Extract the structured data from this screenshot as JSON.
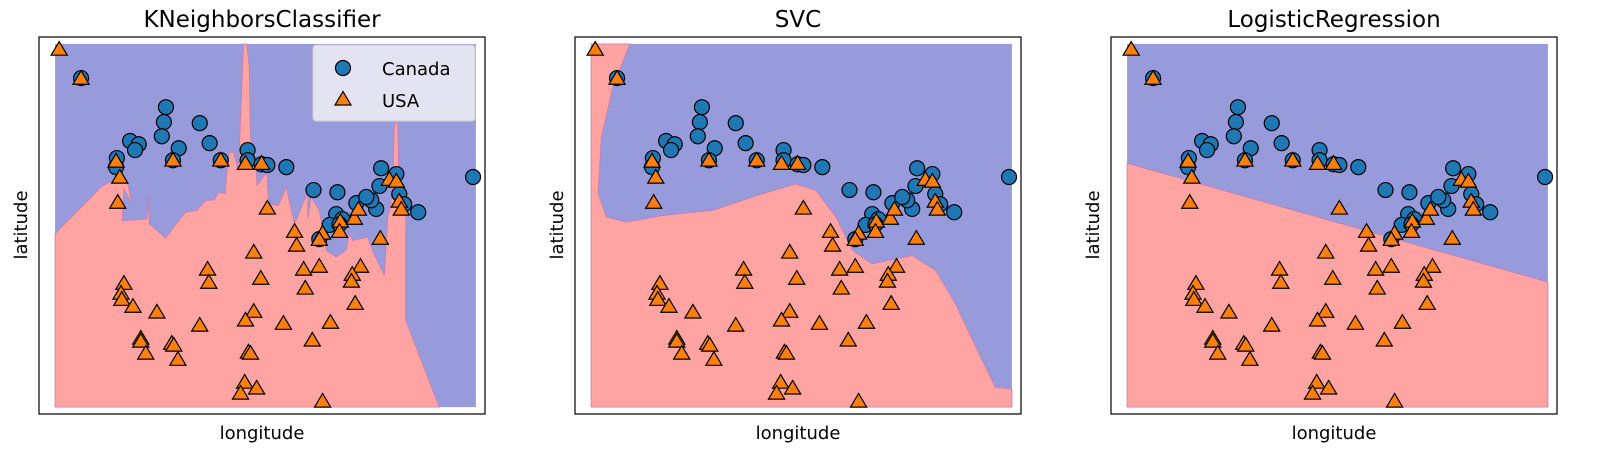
{
  "colors": {
    "region_canada": "#989bdb",
    "region_usa": "#ffa3a3",
    "boundary": "#c87bae",
    "canada_marker": "#1f77b4",
    "usa_marker": "#ff7f0e",
    "marker_edge": "#000000",
    "legend_bg": "#ebebf4"
  },
  "chart_data": [
    {
      "type": "scatter",
      "title": "KNeighborsClassifier",
      "xlabel": "longitude",
      "ylabel": "latitude",
      "legend": "top-right",
      "decision_region": "knn"
    },
    {
      "type": "scatter",
      "title": "SVC",
      "xlabel": "longitude",
      "ylabel": "latitude",
      "decision_region": "svc"
    },
    {
      "type": "scatter",
      "title": "LogisticRegression",
      "xlabel": "longitude",
      "ylabel": "latitude",
      "decision_region": "logreg"
    }
  ],
  "shared": {
    "xlim": [
      -3.9,
      104.3
    ],
    "ylim": [
      -1.9,
      101.8
    ],
    "region_extent": {
      "x": [
        0,
        102.1
      ],
      "y": [
        0,
        99.9
      ]
    },
    "ticks": "none",
    "grid": false,
    "legend": [
      {
        "label": "Canada",
        "marker": "circle"
      },
      {
        "label": "USA",
        "marker": "triangle"
      }
    ],
    "series": [
      {
        "name": "Canada",
        "marker": "circle",
        "points": [
          [
            6.3,
            90.5
          ],
          [
            26.9,
            82.5
          ],
          [
            26.4,
            78.4
          ],
          [
            25.9,
            74.5
          ],
          [
            18.2,
            73.2
          ],
          [
            20.3,
            72.3
          ],
          [
            19.4,
            70.7
          ],
          [
            30.0,
            71.2
          ],
          [
            35.1,
            78.1
          ],
          [
            37.5,
            72.6
          ],
          [
            15.0,
            68.5
          ],
          [
            14.8,
            66.0
          ],
          [
            28.6,
            67.9
          ],
          [
            40.2,
            67.9
          ],
          [
            46.7,
            70.7
          ],
          [
            46.7,
            67.9
          ],
          [
            50.1,
            66.8
          ],
          [
            51.5,
            66.6
          ],
          [
            56.1,
            66.0
          ],
          [
            62.7,
            59.7
          ],
          [
            68.5,
            59.1
          ],
          [
            79.1,
            65.7
          ],
          [
            78.7,
            60.8
          ],
          [
            101.4,
            63.3
          ],
          [
            88.1,
            53.6
          ],
          [
            77.9,
            54.5
          ],
          [
            76.7,
            56.9
          ],
          [
            73.1,
            56.1
          ],
          [
            68.2,
            53.1
          ],
          [
            69.7,
            51.7
          ],
          [
            66.6,
            50.1
          ],
          [
            64.1,
            46.2
          ],
          [
            83.5,
            58.6
          ],
          [
            84.7,
            55.8
          ],
          [
            82.8,
            64.1
          ],
          [
            69.0,
            50.3
          ],
          [
            75.5,
            57.8
          ]
        ]
      },
      {
        "name": "USA",
        "marker": "triangle",
        "points": [
          [
            1.0,
            98.2
          ],
          [
            6.3,
            90.2
          ],
          [
            14.8,
            67.4
          ],
          [
            15.7,
            63.0
          ],
          [
            15.2,
            56.1
          ],
          [
            28.6,
            67.7
          ],
          [
            40.2,
            67.7
          ],
          [
            46.2,
            66.8
          ],
          [
            50.1,
            66.8
          ],
          [
            51.5,
            54.5
          ],
          [
            48.2,
            42.4
          ],
          [
            37.0,
            37.7
          ],
          [
            37.3,
            34.1
          ],
          [
            49.9,
            35.2
          ],
          [
            16.7,
            33.8
          ],
          [
            16.0,
            31.1
          ],
          [
            16.2,
            29.4
          ],
          [
            18.9,
            27.5
          ],
          [
            24.7,
            25.9
          ],
          [
            35.1,
            22.3
          ],
          [
            48.2,
            26.1
          ],
          [
            46.2,
            23.7
          ],
          [
            55.4,
            22.8
          ],
          [
            20.8,
            18.7
          ],
          [
            20.8,
            17.9
          ],
          [
            22.0,
            14.6
          ],
          [
            28.3,
            17.3
          ],
          [
            28.8,
            16.8
          ],
          [
            29.8,
            12.9
          ],
          [
            46.9,
            14.9
          ],
          [
            47.4,
            14.6
          ],
          [
            46.0,
            6.6
          ],
          [
            45.0,
            3.6
          ],
          [
            48.9,
            5.0
          ],
          [
            58.1,
            48.1
          ],
          [
            58.6,
            44.3
          ],
          [
            60.3,
            37.7
          ],
          [
            64.1,
            38.5
          ],
          [
            60.7,
            32.5
          ],
          [
            64.9,
            47.6
          ],
          [
            64.1,
            45.9
          ],
          [
            69.2,
            50.9
          ],
          [
            69.0,
            48.1
          ],
          [
            72.6,
            51.7
          ],
          [
            73.6,
            54.2
          ],
          [
            78.9,
            46.2
          ],
          [
            74.1,
            38.5
          ],
          [
            72.1,
            36.3
          ],
          [
            71.9,
            34.4
          ],
          [
            72.8,
            28.3
          ],
          [
            66.8,
            23.1
          ],
          [
            62.4,
            18.2
          ],
          [
            64.9,
            1.4
          ],
          [
            81.1,
            62.4
          ],
          [
            82.8,
            61.9
          ],
          [
            83.5,
            56.4
          ],
          [
            84.0,
            54.2
          ]
        ]
      }
    ],
    "usa_regions": {
      "knn": [
        [
          0,
          47.7
        ],
        [
          11.1,
          60.5
        ],
        [
          12.7,
          61.7
        ],
        [
          17.5,
          62.3
        ],
        [
          18.6,
          56.1
        ],
        [
          16.7,
          60.0
        ],
        [
          16.3,
          51.2
        ],
        [
          22.3,
          51.8
        ],
        [
          22.5,
          57.5
        ],
        [
          22.9,
          50.4
        ],
        [
          26.8,
          46.5
        ],
        [
          31.6,
          53.6
        ],
        [
          34.4,
          54.1
        ],
        [
          36.5,
          56.8
        ],
        [
          38.6,
          57.0
        ],
        [
          39.7,
          59.1
        ],
        [
          41.3,
          58.7
        ],
        [
          41.7,
          65.1
        ],
        [
          42.3,
          70.1
        ],
        [
          43.3,
          70.1
        ],
        [
          44.5,
          65.1
        ],
        [
          45.1,
          82.0
        ],
        [
          45.7,
          99.9
        ],
        [
          46.5,
          99.9
        ],
        [
          47.1,
          93.5
        ],
        [
          47.4,
          74.3
        ],
        [
          48.7,
          67.4
        ],
        [
          49.0,
          61.0
        ],
        [
          51.4,
          64.6
        ],
        [
          51.8,
          55.9
        ],
        [
          54.2,
          55.5
        ],
        [
          56.1,
          60.5
        ],
        [
          58.1,
          50.4
        ],
        [
          61.3,
          59.1
        ],
        [
          61.3,
          51.8
        ],
        [
          62.1,
          57.8
        ],
        [
          64.1,
          54.1
        ],
        [
          65.8,
          43.1
        ],
        [
          68.2,
          41.3
        ],
        [
          70.6,
          43.1
        ],
        [
          71.4,
          47.7
        ],
        [
          72.2,
          45.8
        ],
        [
          75.8,
          46.8
        ],
        [
          77.0,
          43.1
        ],
        [
          79.9,
          36.2
        ],
        [
          80.7,
          52.3
        ],
        [
          81.5,
          55.9
        ],
        [
          81.9,
          61.4
        ],
        [
          82.3,
          77.0
        ],
        [
          83.1,
          79.8
        ],
        [
          83.5,
          56.4
        ],
        [
          84.7,
          55.0
        ],
        [
          85.1,
          52.3
        ],
        [
          85.1,
          23.8
        ],
        [
          86.3,
          20.2
        ],
        [
          93.2,
          0
        ],
        [
          0,
          0
        ]
      ],
      "svc": [
        [
          0,
          99.9
        ],
        [
          9.4,
          99.9
        ],
        [
          5.3,
          88.0
        ],
        [
          2.5,
          74.3
        ],
        [
          1.7,
          58.7
        ],
        [
          3.7,
          52.3
        ],
        [
          8.5,
          50.9
        ],
        [
          17.4,
          52.7
        ],
        [
          29.5,
          54.1
        ],
        [
          41.6,
          58.7
        ],
        [
          49.7,
          61.4
        ],
        [
          54.5,
          59.6
        ],
        [
          59.4,
          52.3
        ],
        [
          63.4,
          43.1
        ],
        [
          68.2,
          39.4
        ],
        [
          77.9,
          41.7
        ],
        [
          83.6,
          37.6
        ],
        [
          88.4,
          28.4
        ],
        [
          94.1,
          14.7
        ],
        [
          98.1,
          5.5
        ],
        [
          102.1,
          5.0
        ],
        [
          102.1,
          0
        ],
        [
          0,
          0
        ]
      ],
      "logreg": [
        [
          0,
          67.1
        ],
        [
          102.1,
          34.4
        ],
        [
          102.1,
          0
        ],
        [
          0,
          0
        ]
      ]
    }
  }
}
